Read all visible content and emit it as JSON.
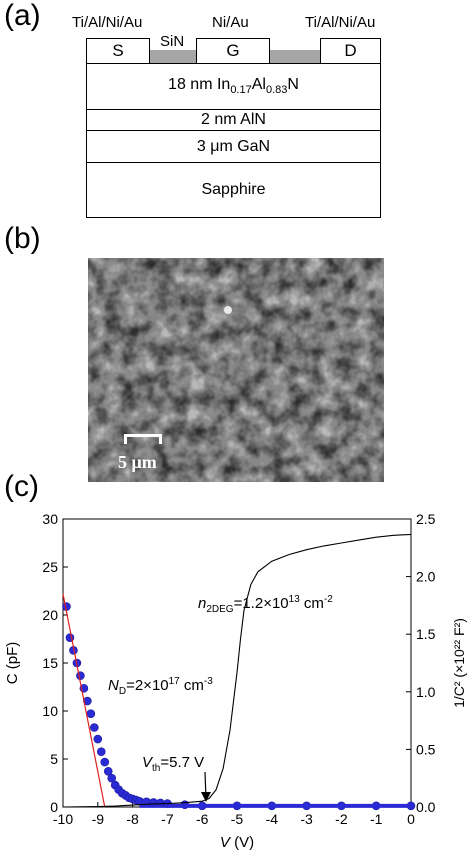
{
  "panel_a": {
    "label": "(a)",
    "metal_left": "Ti/Al/Ni/Au",
    "metal_gate": "Ni/Au",
    "metal_right": "Ti/Al/Ni/Au",
    "passivation": "SiN",
    "source": "S",
    "gate": "G",
    "drain": "D",
    "barrier": {
      "prefix": "18 nm In",
      "sub1": "0.17",
      "mid": "Al",
      "sub2": "0.83",
      "suffix": "N"
    },
    "spacer": "2 nm AlN",
    "buffer": "3 μm GaN",
    "substrate": "Sapphire"
  },
  "panel_b": {
    "label": "(b)",
    "scale_bar": "5 μm"
  },
  "panel_c": {
    "label": "(c)",
    "chart_data": {
      "type": "line",
      "xlabel_italic": "V",
      "xlabel_unit": " (V)",
      "ylabel_left": "C (pF)",
      "ylabel_right": "1/C² (×10²² F²)",
      "xlim": [
        -10,
        0
      ],
      "ylim_left": [
        0,
        30
      ],
      "ylim_right": [
        0,
        2.5
      ],
      "x_ticks": [
        "-10",
        "-9",
        "-8",
        "-7",
        "-6",
        "-5",
        "-4",
        "-3",
        "-2",
        "-1",
        "0"
      ],
      "y_left_ticks": [
        "0",
        "5",
        "10",
        "15",
        "20",
        "25",
        "30"
      ],
      "y_right_ticks": [
        "0.0",
        "0.5",
        "1.0",
        "1.5",
        "2.0",
        "2.5"
      ],
      "series": [
        {
          "axis": "left",
          "style": "black line",
          "x": [
            -10,
            -9,
            -8.5,
            -8,
            -7.5,
            -7,
            -6.5,
            -6,
            -5.8,
            -5.6,
            -5.4,
            -5.2,
            -5.0,
            -4.9,
            -4.8,
            -4.6,
            -4.4,
            -4.0,
            -3.5,
            -3.0,
            -2.5,
            -2.0,
            -1.5,
            -1.0,
            -0.5,
            0
          ],
          "y": [
            0,
            0.05,
            0.1,
            0.2,
            0.3,
            0.35,
            0.45,
            0.6,
            0.9,
            1.8,
            4.0,
            8.0,
            14.0,
            17.5,
            20.5,
            23.2,
            24.5,
            25.6,
            26.3,
            26.8,
            27.2,
            27.5,
            27.8,
            28.1,
            28.3,
            28.4
          ]
        },
        {
          "axis": "right",
          "style": "blue markers",
          "x": [
            -9.9,
            -9.8,
            -9.7,
            -9.6,
            -9.5,
            -9.4,
            -9.3,
            -9.2,
            -9.1,
            -9.0,
            -8.9,
            -8.8,
            -8.7,
            -8.6,
            -8.5,
            -8.4,
            -8.3,
            -8.2,
            -8.1,
            -8.0,
            -7.9,
            -7.8,
            -7.6,
            -7.4,
            -7.2,
            -7.0,
            -6.5,
            -6.0,
            -5.0,
            -4.0,
            -3.0,
            -2.0,
            -1.0,
            0
          ],
          "y": [
            1.74,
            1.47,
            1.36,
            1.25,
            1.14,
            1.03,
            0.92,
            0.81,
            0.69,
            0.59,
            0.48,
            0.39,
            0.31,
            0.25,
            0.19,
            0.15,
            0.12,
            0.1,
            0.08,
            0.07,
            0.06,
            0.05,
            0.045,
            0.04,
            0.035,
            0.03,
            0.02,
            0.01,
            0.01,
            0.01,
            0.01,
            0.01,
            0.01,
            0.01
          ]
        },
        {
          "axis": "right",
          "style": "red fit line",
          "x": [
            -10,
            -8.8
          ],
          "y": [
            1.85,
            0
          ]
        }
      ],
      "annotations": {
        "n2deg": {
          "sym": "n",
          "sub": "2DEG",
          "text": "=1.2×10",
          "sup": "13",
          "unit": " cm",
          "unit_sup": "-2"
        },
        "nd": {
          "sym": "N",
          "sub": "D",
          "text": "=2×10",
          "sup": "17",
          "unit": " cm",
          "unit_sup": "-3"
        },
        "vth": {
          "sym": "V",
          "sub": "th",
          "text": "=5.7 V"
        }
      }
    }
  }
}
